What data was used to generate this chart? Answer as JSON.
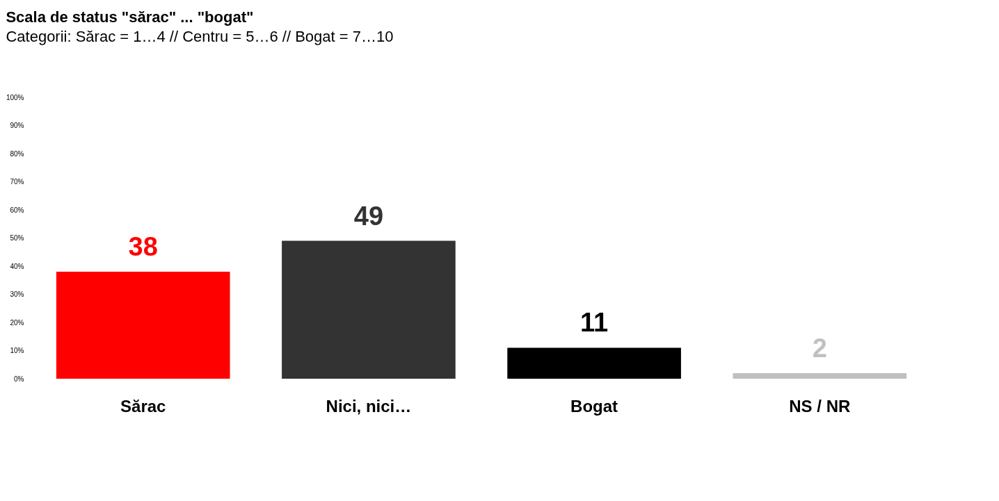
{
  "chart_data": {
    "type": "bar",
    "title": "Scala de status \"sărac\" ... \"bogat\"",
    "subtitle": "Categorii: Sărac = 1…4 // Centru = 5…6 // Bogat = 7…10",
    "categories": [
      "Sărac",
      "Nici, nici…",
      "Bogat",
      "NS / NR"
    ],
    "values": [
      38,
      49,
      11,
      2
    ],
    "colors": [
      "#ff0000",
      "#333333",
      "#000000",
      "#c0c0c0"
    ],
    "ylim": [
      0,
      100
    ],
    "yticks": [
      {
        "value": 0,
        "label": "0%"
      },
      {
        "value": 10,
        "label": "10%"
      },
      {
        "value": 20,
        "label": "20%"
      },
      {
        "value": 30,
        "label": "30%"
      },
      {
        "value": 40,
        "label": "40%"
      },
      {
        "value": 50,
        "label": "50%"
      },
      {
        "value": 60,
        "label": "60%"
      },
      {
        "value": 70,
        "label": "70%"
      },
      {
        "value": 80,
        "label": "80%"
      },
      {
        "value": 90,
        "label": "90%"
      },
      {
        "value": 100,
        "label": "100%"
      }
    ],
    "grid": false,
    "legend": false,
    "data_labels": true
  }
}
